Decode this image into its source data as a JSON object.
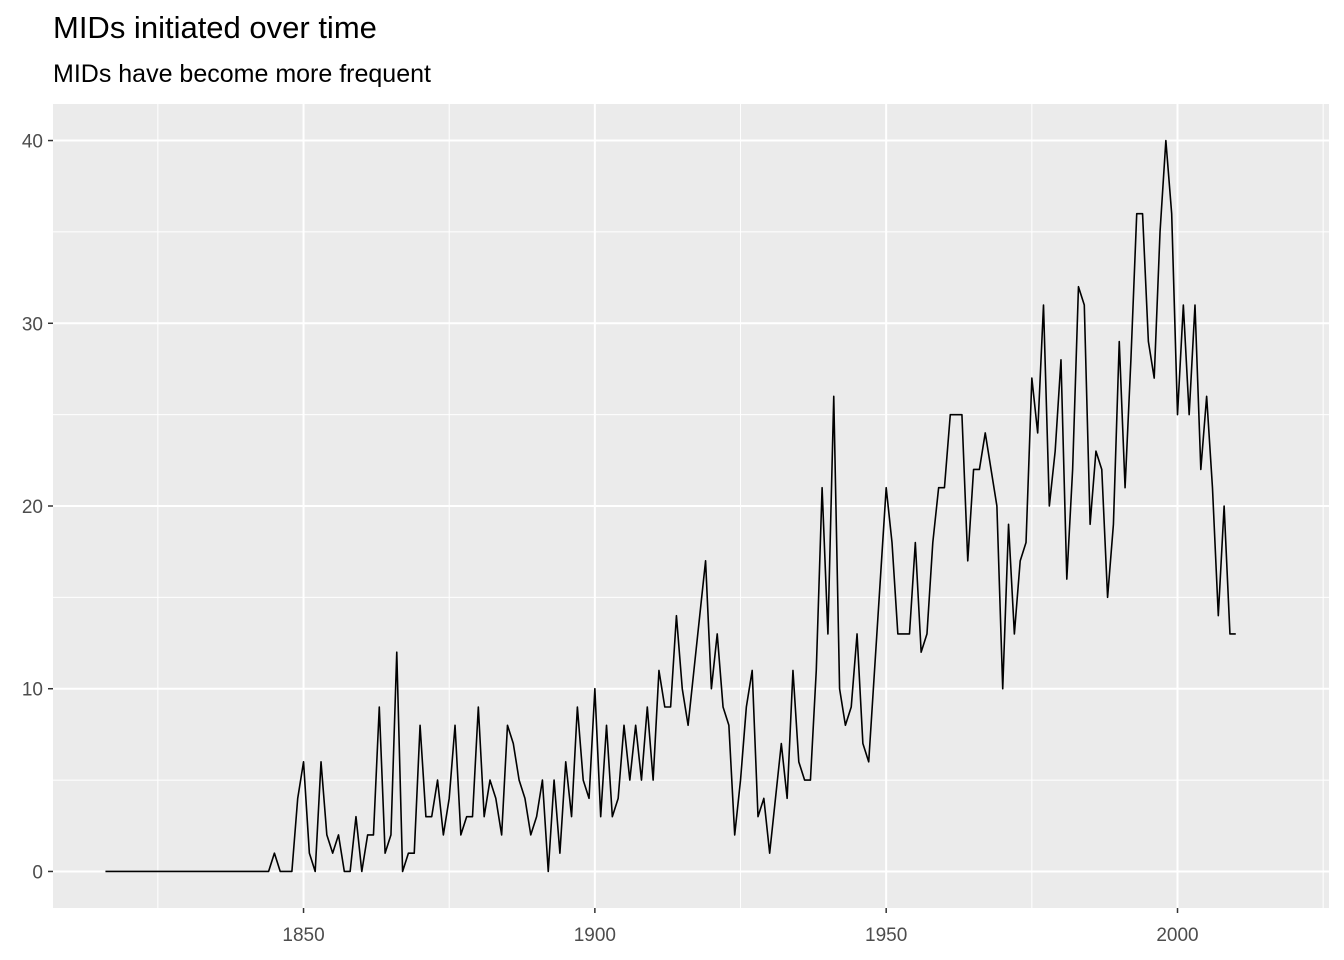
{
  "chart_data": {
    "type": "line",
    "title": "MIDs initiated over time",
    "subtitle": "MIDs have become more frequent",
    "xlabel": "",
    "ylabel": "",
    "xlim": [
      1807,
      2026
    ],
    "ylim": [
      -2,
      42
    ],
    "x_ticks": [
      1850,
      1900,
      1950,
      2000
    ],
    "y_ticks": [
      0,
      10,
      20,
      30,
      40
    ],
    "grid": true,
    "legend": "none",
    "colors": {
      "panel_background": "#ebebeb",
      "grid": "#ffffff",
      "line": "#000000",
      "tick_label": "#4d4d4d"
    },
    "series": [
      {
        "x": [
          1816,
          1817,
          1818,
          1819,
          1820,
          1821,
          1822,
          1823,
          1824,
          1825,
          1826,
          1827,
          1828,
          1829,
          1830,
          1831,
          1832,
          1833,
          1834,
          1835,
          1836,
          1837,
          1838,
          1839,
          1840,
          1841,
          1842,
          1843,
          1844,
          1845,
          1846,
          1847,
          1848,
          1849,
          1850,
          1851,
          1852,
          1853,
          1854,
          1855,
          1856,
          1857,
          1858,
          1859,
          1860,
          1861,
          1862,
          1863,
          1864,
          1865,
          1866,
          1867,
          1868,
          1869,
          1870,
          1871,
          1872,
          1873,
          1874,
          1875,
          1876,
          1877,
          1878,
          1879,
          1880,
          1881,
          1882,
          1883,
          1884,
          1885,
          1886,
          1887,
          1888,
          1889,
          1890,
          1891,
          1892,
          1893,
          1894,
          1895,
          1896,
          1897,
          1898,
          1899,
          1900,
          1901,
          1902,
          1903,
          1904,
          1905,
          1906,
          1907,
          1908,
          1909,
          1910,
          1911,
          1912,
          1913,
          1914,
          1915,
          1916,
          1917,
          1918,
          1919,
          1920,
          1921,
          1922,
          1923,
          1924,
          1925,
          1926,
          1927,
          1928,
          1929,
          1930,
          1931,
          1932,
          1933,
          1934,
          1935,
          1936,
          1937,
          1938,
          1939,
          1940,
          1941,
          1942,
          1943,
          1944,
          1945,
          1946,
          1947,
          1948,
          1949,
          1950,
          1951,
          1952,
          1953,
          1954,
          1955,
          1956,
          1957,
          1958,
          1959,
          1960,
          1961,
          1962,
          1963,
          1964,
          1965,
          1966,
          1967,
          1968,
          1969,
          1970,
          1971,
          1972,
          1973,
          1974,
          1975,
          1976,
          1977,
          1978,
          1979,
          1980,
          1981,
          1982,
          1983,
          1984,
          1985,
          1986,
          1987,
          1988,
          1989,
          1990,
          1991,
          1992,
          1993,
          1994,
          1995,
          1996,
          1997,
          1998,
          1999,
          2000,
          2001,
          2002,
          2003,
          2004,
          2005,
          2006,
          2007,
          2008,
          2009,
          2010
        ],
        "y": [
          0,
          0,
          0,
          0,
          0,
          0,
          0,
          0,
          0,
          0,
          0,
          0,
          0,
          0,
          0,
          0,
          0,
          0,
          0,
          0,
          0,
          0,
          0,
          0,
          0,
          0,
          0,
          0,
          0,
          1,
          0,
          0,
          0,
          4,
          6,
          1,
          0,
          6,
          2,
          1,
          2,
          0,
          0,
          3,
          0,
          2,
          2,
          9,
          1,
          2,
          12,
          0,
          1,
          1,
          8,
          3,
          3,
          5,
          2,
          4,
          8,
          2,
          3,
          3,
          9,
          3,
          5,
          4,
          2,
          8,
          7,
          5,
          4,
          2,
          3,
          5,
          0,
          5,
          1,
          6,
          3,
          9,
          5,
          4,
          10,
          3,
          8,
          3,
          4,
          8,
          5,
          8,
          5,
          9,
          5,
          11,
          9,
          9,
          14,
          10,
          8,
          11,
          14,
          17,
          10,
          13,
          9,
          8,
          2,
          5,
          9,
          11,
          3,
          4,
          1,
          4,
          7,
          4,
          11,
          6,
          5,
          5,
          11,
          21,
          13,
          26,
          10,
          8,
          9,
          13,
          7,
          6,
          11,
          16,
          21,
          18,
          13,
          13,
          13,
          18,
          12,
          13,
          18,
          21,
          21,
          25,
          25,
          25,
          17,
          22,
          22,
          24,
          22,
          20,
          10,
          19,
          13,
          17,
          18,
          27,
          24,
          31,
          20,
          23,
          28,
          16,
          22,
          32,
          31,
          19,
          23,
          22,
          15,
          19,
          29,
          21,
          28,
          36,
          36,
          29,
          27,
          35,
          40,
          36,
          25,
          31,
          25,
          31,
          22,
          26,
          21,
          14,
          20,
          13,
          13
        ]
      }
    ]
  }
}
